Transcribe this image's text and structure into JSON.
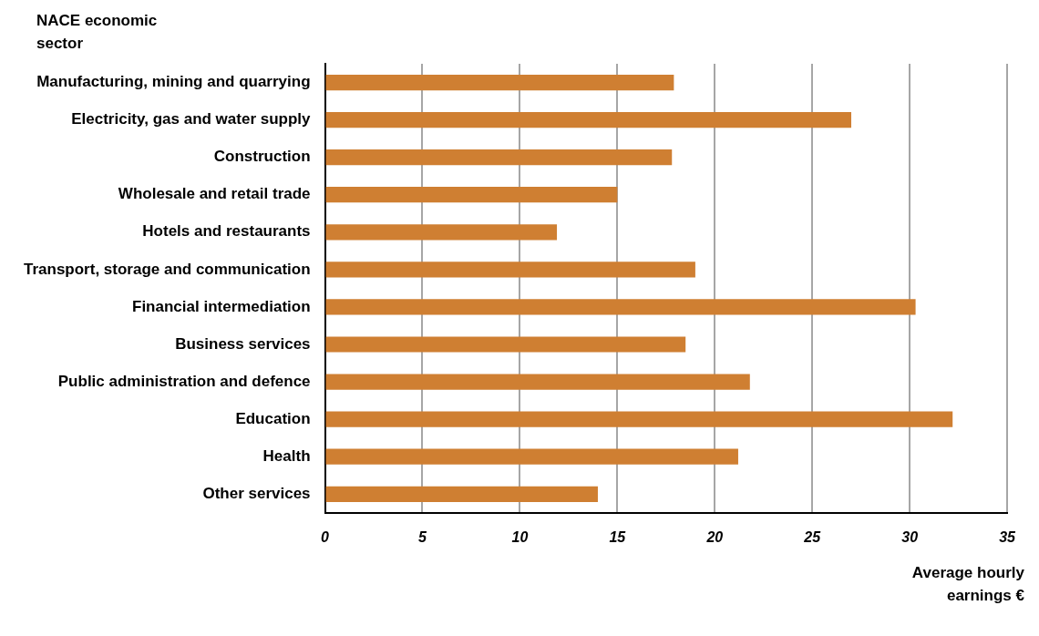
{
  "chart_data": {
    "type": "bar",
    "orientation": "horizontal",
    "ylabel": "NACE economic sector",
    "xlabel": "Average hourly earnings €",
    "categories": [
      "Manufacturing, mining and quarrying",
      "Electricity, gas and water supply",
      "Construction",
      "Wholesale and retail trade",
      "Hotels and restaurants",
      "Transport, storage and communication",
      "Financial intermediation",
      "Business services",
      "Public administration and defence",
      "Education",
      "Health",
      "Other services"
    ],
    "values": [
      17.9,
      27.0,
      17.8,
      15.0,
      11.9,
      19.0,
      30.3,
      18.5,
      21.8,
      32.2,
      21.2,
      14.0
    ],
    "color": "#cf7f32",
    "xlim": [
      0,
      35
    ],
    "xticks": [
      0,
      5,
      10,
      15,
      20,
      25,
      30,
      35
    ],
    "grid": "x",
    "legend": false
  }
}
